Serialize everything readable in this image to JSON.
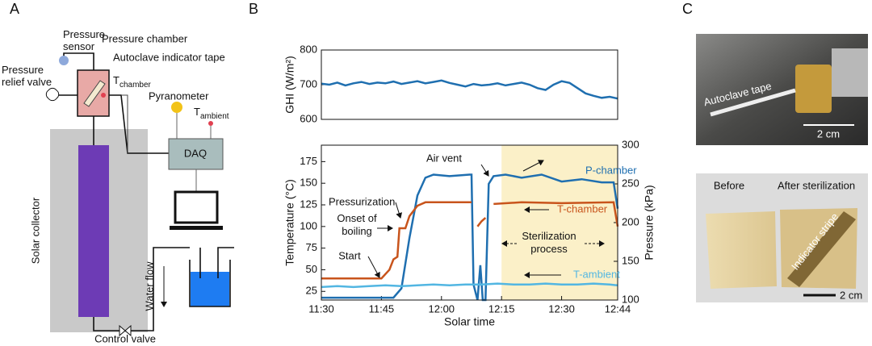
{
  "panels": [
    "A",
    "B",
    "C"
  ],
  "diagram": {
    "pressure_sensor": "Pressure sensor",
    "pressure_chamber": "Pressure chamber",
    "indicator_tape": "Autoclave indicator tape",
    "relief_valve": "Pressure relief valve",
    "t_chamber": {
      "base": "T",
      "sub": "chamber"
    },
    "pyranometer": "Pyranometer",
    "t_ambient": {
      "base": "T",
      "sub": "ambient"
    },
    "daq": "DAQ",
    "solar_collector": "Solar collector",
    "water_flow": "Water flow",
    "control_valve": "Control valve"
  },
  "chart_data": [
    {
      "type": "line",
      "ylabel": "GHI (W/m²)",
      "xlim": [
        690,
        764
      ],
      "ylim": [
        600,
        800
      ],
      "yticks": [
        600,
        700,
        800
      ],
      "series": [
        {
          "name": "GHI",
          "color": "#1f6fb0",
          "x": [
            690,
            692,
            694,
            696,
            698,
            700,
            702,
            704,
            706,
            708,
            710,
            712,
            714,
            716,
            718,
            720,
            722,
            724,
            726,
            728,
            730,
            732,
            734,
            736,
            738,
            740,
            742,
            744,
            746,
            748,
            750,
            752,
            754,
            756,
            758,
            760,
            762,
            764
          ],
          "values": [
            703,
            700,
            706,
            698,
            704,
            708,
            702,
            706,
            704,
            709,
            702,
            706,
            710,
            704,
            708,
            712,
            705,
            700,
            695,
            702,
            698,
            700,
            704,
            698,
            702,
            706,
            700,
            690,
            685,
            700,
            710,
            705,
            690,
            675,
            668,
            662,
            665,
            660
          ]
        }
      ]
    },
    {
      "type": "line",
      "xlabel": "Solar time",
      "ylabel": "Temperature (°C)",
      "y2label": "Pressure (kPa)",
      "xlim": [
        690,
        764
      ],
      "xticks": [
        {
          "value": 690,
          "label": "11:30"
        },
        {
          "value": 705,
          "label": "11:45"
        },
        {
          "value": 720,
          "label": "12:00"
        },
        {
          "value": 735,
          "label": "12:15"
        },
        {
          "value": 750,
          "label": "12:30"
        },
        {
          "value": 764,
          "label": "12:44"
        }
      ],
      "ylim": [
        15,
        194
      ],
      "yticks": [
        25,
        50,
        75,
        100,
        125,
        150,
        175
      ],
      "y2lim": [
        100,
        300
      ],
      "y2ticks": [
        100,
        150,
        200,
        250,
        300
      ],
      "shade": [
        735,
        764
      ],
      "shade_color": "#fbf0c8",
      "annotations": [
        "Start",
        "Onset of boiling",
        "Pressurization",
        "Air vent",
        "Sterilization process"
      ],
      "series": [
        {
          "name": "P-chamber",
          "color": "#1f6fb0",
          "axis": "y2",
          "x": [
            690,
            708,
            710,
            712,
            714,
            716,
            718,
            722,
            727,
            727.5,
            728,
            729,
            729.7,
            730.3,
            731,
            731.8,
            733,
            736,
            740,
            745,
            750,
            755,
            760,
            763,
            764
          ],
          "values": [
            103,
            103,
            115,
            180,
            235,
            258,
            262,
            260,
            262,
            262,
            120,
            100,
            145,
            100,
            100,
            250,
            260,
            262,
            258,
            262,
            253,
            256,
            252,
            252,
            218
          ]
        },
        {
          "name": "T-chamber",
          "color": "#c8541c",
          "x": [
            690,
            705,
            707,
            708,
            709,
            709.5,
            711,
            712,
            714,
            716,
            720,
            727.5,
            728,
            729,
            730,
            731,
            732,
            733,
            740,
            750,
            763,
            764
          ],
          "values": [
            40,
            40,
            50,
            62,
            65,
            98,
            98,
            112,
            124,
            128,
            128,
            128,
            null,
            100,
            106,
            110,
            null,
            126,
            128,
            127,
            128,
            100
          ]
        },
        {
          "name": "T-ambient",
          "color": "#52b6e2",
          "x": [
            690,
            694,
            698,
            702,
            706,
            710,
            714,
            718,
            722,
            726,
            730,
            734,
            738,
            742,
            746,
            750,
            754,
            758,
            762,
            764
          ],
          "values": [
            30,
            31,
            30,
            31,
            32,
            31,
            32,
            33,
            32,
            33,
            33,
            34,
            33,
            33,
            34,
            33,
            33,
            34,
            33,
            32
          ]
        }
      ]
    }
  ],
  "photos": {
    "autoclave_tape": "Autoclave tape",
    "scale_top": "2 cm",
    "before": "Before",
    "after": "After sterilization",
    "indicator_stripe": "Indicator stripe",
    "scale_bottom": "2 cm"
  }
}
